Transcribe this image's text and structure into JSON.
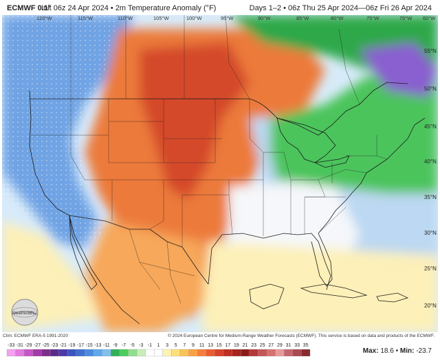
{
  "header": {
    "model": "ECMWF 0.1°",
    "run": "Init 06z 24 Apr 2024 • 2m Temperature Anomaly (°F)",
    "valid": "Days 1–2 • 06z Thu 25 Apr 2024—06z Fri 26 Apr 2024"
  },
  "footer": {
    "clim_credit": "Clim: ECMWF ERA-5 1991-2020",
    "copyright": "© 2024 European Centre for Medium-Range Weather Forecasts (ECMWF). This service is based on data and products of the ECMWF.",
    "max_label": "Max:",
    "max_value": "18.6",
    "min_label": "Min:",
    "min_value": "-23.7",
    "separator": "•"
  },
  "logo_text": "WeatherBELL",
  "colorbar": {
    "ticks": [
      "-33",
      "-31",
      "-29",
      "-27",
      "-25",
      "-23",
      "-21",
      "-19",
      "-17",
      "-15",
      "-13",
      "-11",
      "-9",
      "-7",
      "-5",
      "-3",
      "-1",
      "1",
      "3",
      "5",
      "7",
      "9",
      "11",
      "13",
      "15",
      "17",
      "19",
      "21",
      "23",
      "25",
      "27",
      "29",
      "31",
      "33",
      "35"
    ],
    "colors": [
      "#f4a0f0",
      "#e37ae0",
      "#c855c8",
      "#a43aa8",
      "#7d2d8c",
      "#5a2a8c",
      "#4b3aa8",
      "#3d55c0",
      "#3f6fd2",
      "#4a8de0",
      "#5fa8ea",
      "#7fc0ee",
      "#33b058",
      "#4ccc5e",
      "#8ee08a",
      "#c8eeb8",
      "#ffffff",
      "#ffffff",
      "#fff3b4",
      "#fde07a",
      "#fcc254",
      "#fba044",
      "#f67e3c",
      "#ea5c30",
      "#d8402a",
      "#c02e22",
      "#a8241c",
      "#8c1c18",
      "#b33a3a",
      "#c85454",
      "#d87070",
      "#e89a9a",
      "#c8646e",
      "#a84a50",
      "#882a30"
    ]
  },
  "lat_labels": [
    "55°N",
    "50°N",
    "45°N",
    "40°N",
    "35°N",
    "30°N",
    "25°N",
    "20°N"
  ],
  "lon_labels": [
    "120°W",
    "115°W",
    "110°W",
    "105°W",
    "100°W",
    "95°W",
    "90°W",
    "85°W",
    "80°W",
    "75°W",
    "70°W",
    "60°W"
  ],
  "field_colors": {
    "warm_deep": "#9c2418",
    "warm": "#d44a2a",
    "warm_mid": "#ec7a3a",
    "warm_light": "#f7a85a",
    "pale_yellow": "#fdf0b8",
    "white": "#f5f7fa",
    "cool_light": "#bcd8f2",
    "cool": "#6fa3e4",
    "cool_mid": "#4a7fd6",
    "green": "#4cc45c",
    "green_deep": "#2ea84a",
    "purple": "#8a5fd0",
    "ocean_light": "#d8ebfa"
  }
}
